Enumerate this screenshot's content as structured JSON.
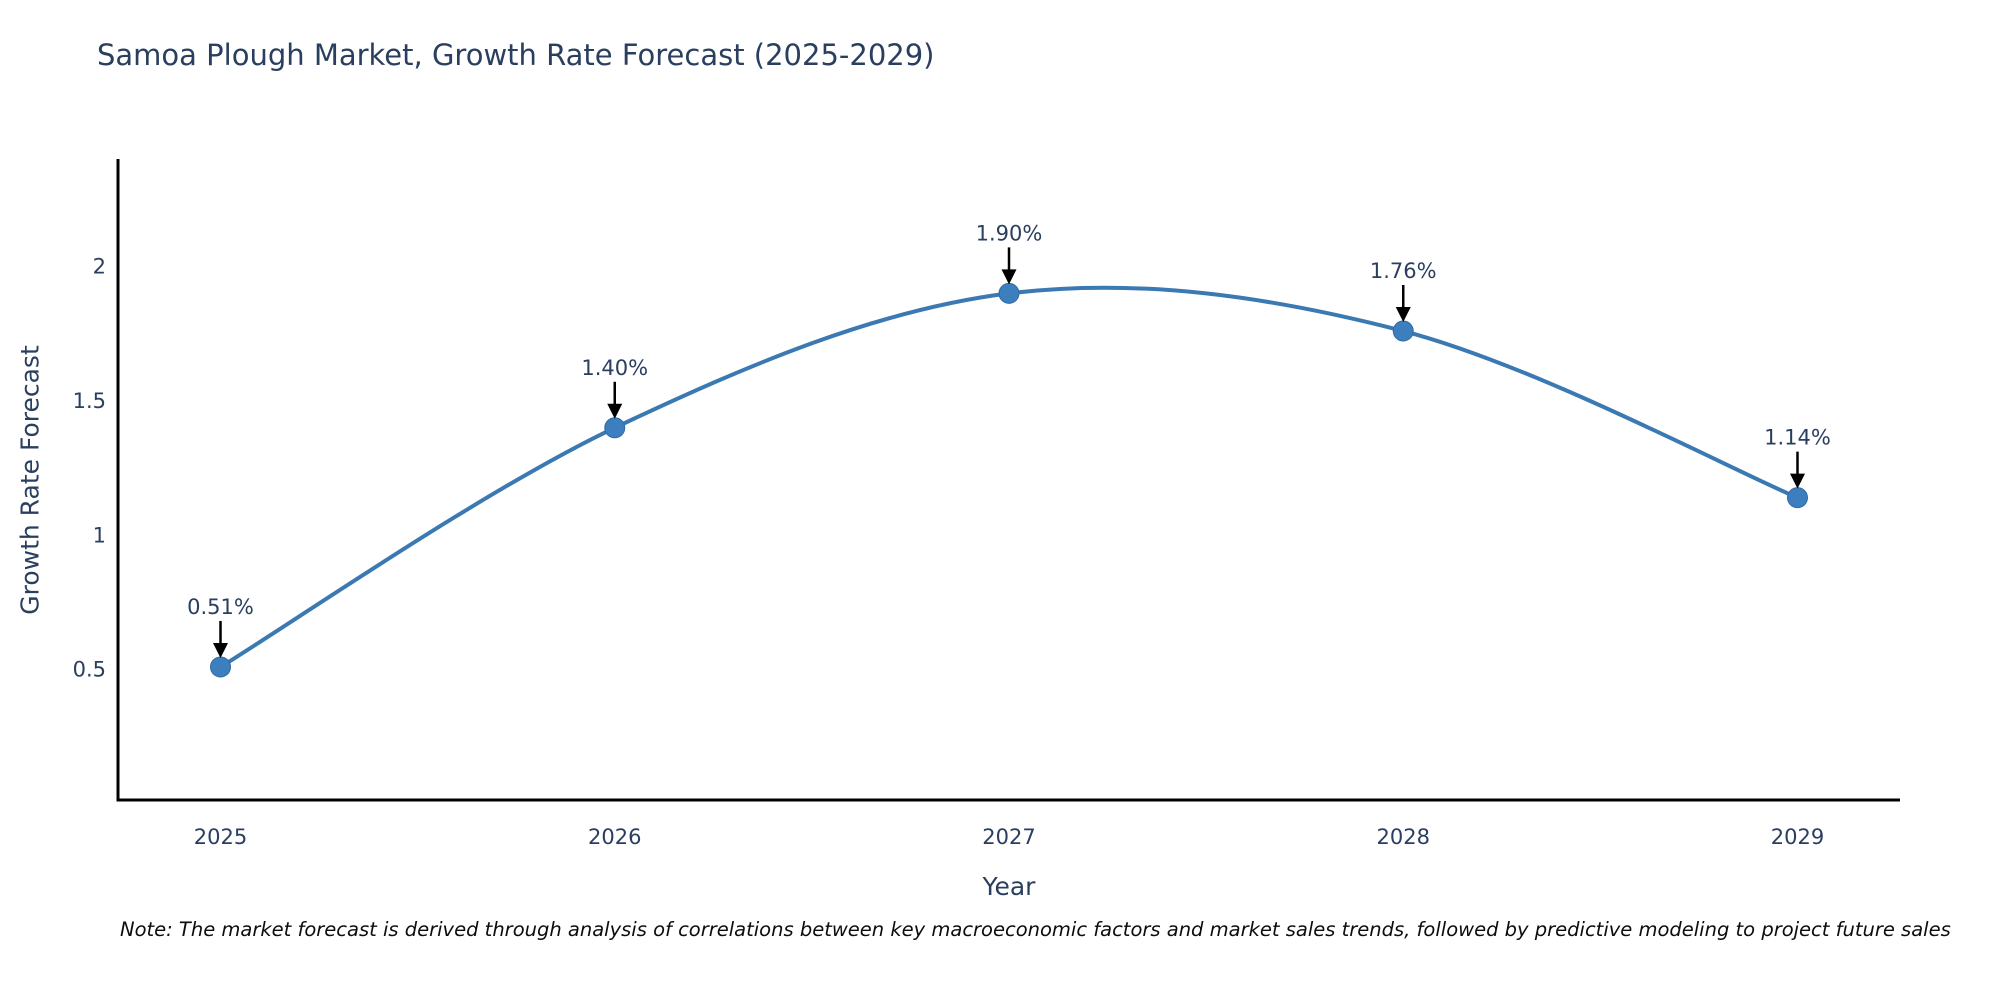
{
  "chart_data": {
    "type": "line",
    "title": "Samoa Plough Market, Growth Rate Forecast (2025-2029)",
    "xlabel": "Year",
    "ylabel": "Growth Rate Forecast",
    "x": [
      2025,
      2026,
      2027,
      2028,
      2029
    ],
    "series": [
      {
        "name": "Growth Rate Forecast",
        "values": [
          0.51,
          1.4,
          1.9,
          1.76,
          1.14
        ]
      }
    ],
    "point_labels": [
      "0.51%",
      "1.40%",
      "1.90%",
      "1.76%",
      "1.14%"
    ],
    "xticks": [
      "2025",
      "2026",
      "2027",
      "2028",
      "2029"
    ],
    "yticks": [
      0.5,
      1,
      1.5,
      2
    ],
    "ytick_labels": [
      "0.5",
      "1",
      "1.5",
      "2"
    ],
    "xlim": [
      2024.74,
      2029.26
    ],
    "ylim": [
      0.015,
      2.4
    ],
    "grid": false,
    "legend": "none",
    "line_shape": "spline",
    "colors": {
      "line": "#3b79b3",
      "marker": "#3d7ebf",
      "marker_edge": "#2f6ba3",
      "axis": "#000000",
      "text": "#2a3f5f",
      "arrow": "#000000"
    },
    "note": "Note: The market forecast is derived through analysis of correlations between key macroeconomic factors and market sales trends, followed by predictive modeling to project future sales"
  }
}
